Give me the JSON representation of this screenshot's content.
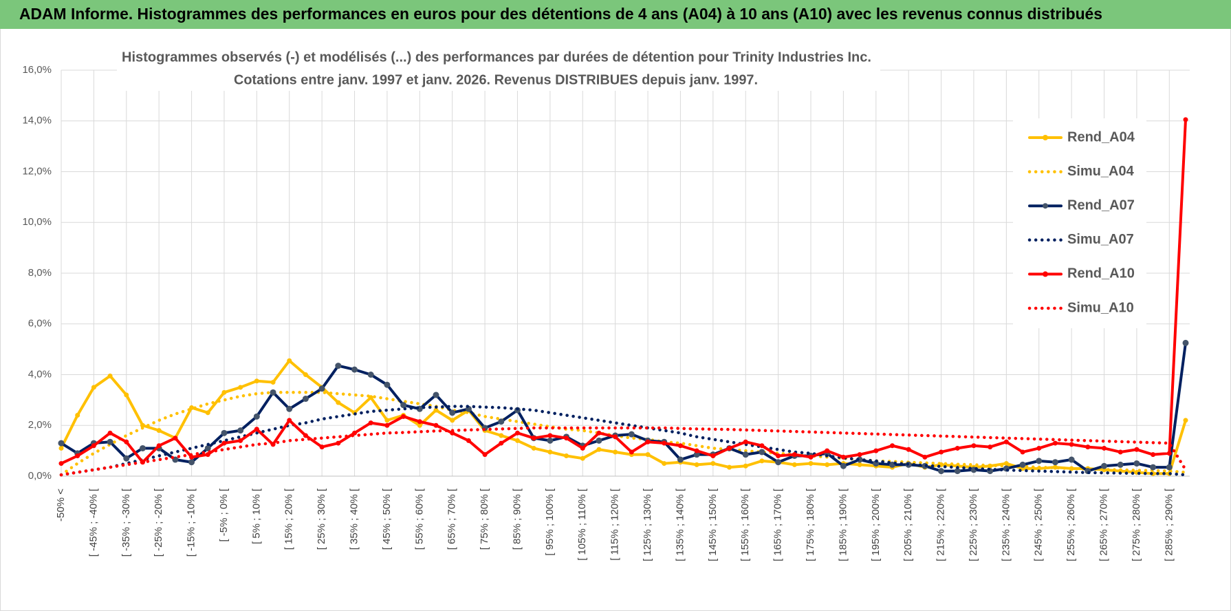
{
  "header": {
    "title": "ADAM Informe. Histogrammes des performances en euros pour des détentions de 4 ans (A04) à 10 ans (A10) avec les revenus connus distribués"
  },
  "chart_data": {
    "type": "line",
    "title": "Histogrammes observés (-) et modélisés (...) des performances par durées de détention pour Trinity Industries Inc.",
    "subtitle": "Cotations entre janv. 1997 et janv. 2026. Revenus DISTRIBUES depuis janv. 1997.",
    "categories": [
      "-50% <",
      null,
      "[ -45% ; -40% [",
      null,
      "[ -35% ; -30% [",
      null,
      "[ -25% ; -20% [",
      null,
      "[ -15% ; -10% [",
      null,
      "[ -5% ; 0% [",
      null,
      "[ 5% ; 10% [",
      null,
      "[ 15% ; 20% [",
      null,
      "[ 25% ; 30% [",
      null,
      "[ 35% ; 40% [",
      null,
      "[ 45% ; 50% [",
      null,
      "[ 55% ; 60% [",
      null,
      "[ 65% ; 70% [",
      null,
      "[ 75% ; 80% [",
      null,
      "[ 85% ; 90% [",
      null,
      "[ 95% ; 100% [",
      null,
      "[ 105% ; 110% [",
      null,
      "[ 115% ; 120% [",
      null,
      "[ 125% ; 130% [",
      null,
      "[ 135% ; 140% [",
      null,
      "[ 145% ; 150% [",
      null,
      "[ 155% ; 160% [",
      null,
      "[ 165% ; 170% [",
      null,
      "[ 175% ; 180% [",
      null,
      "[ 185% ; 190% [",
      null,
      "[ 195% ; 200% [",
      null,
      "[ 205% ; 210% [",
      null,
      "[ 215% ; 220% [",
      null,
      "[ 225% ; 230% [",
      null,
      "[ 235% ; 240% [",
      null,
      "[ 245% ; 250% [",
      null,
      "[ 255% ; 260% [",
      null,
      "[ 265% ; 270% [",
      null,
      "[ 275% ; 280% [",
      null,
      "[ 285% ; 290% [",
      null
    ],
    "ylim": [
      0,
      16
    ],
    "yticks": [
      {
        "value": 0,
        "label": "0,0%"
      },
      {
        "value": 2,
        "label": "2,0%"
      },
      {
        "value": 4,
        "label": "4,0%"
      },
      {
        "value": 6,
        "label": "6,0%"
      },
      {
        "value": 8,
        "label": "8,0%"
      },
      {
        "value": 10,
        "label": "10,0%"
      },
      {
        "value": 12,
        "label": "12,0%"
      },
      {
        "value": 14,
        "label": "14,0%"
      },
      {
        "value": 16,
        "label": "16,0%"
      }
    ],
    "grid": true,
    "legend": "right",
    "series": [
      {
        "name": "Rend_A04",
        "color": "#FFC000",
        "marker_color": "#FFC000",
        "style": "solid",
        "marker": true,
        "values": [
          1.1,
          2.4,
          3.5,
          3.95,
          3.2,
          2.0,
          1.8,
          1.5,
          2.7,
          2.5,
          3.3,
          3.5,
          3.75,
          3.7,
          4.55,
          4.0,
          3.5,
          2.9,
          2.5,
          3.1,
          2.2,
          2.4,
          2.0,
          2.6,
          2.2,
          2.6,
          1.8,
          1.6,
          1.4,
          1.1,
          0.95,
          0.8,
          0.7,
          1.05,
          0.95,
          0.85,
          0.85,
          0.5,
          0.55,
          0.45,
          0.5,
          0.35,
          0.4,
          0.6,
          0.55,
          0.45,
          0.5,
          0.45,
          0.5,
          0.45,
          0.4,
          0.35,
          0.5,
          0.35,
          0.45,
          0.4,
          0.35,
          0.4,
          0.5,
          0.3,
          0.3,
          0.35,
          0.3,
          0.3,
          0.25,
          0.2,
          0.15,
          0.1,
          0.1,
          2.2
        ]
      },
      {
        "name": "Simu_A04",
        "color": "#FFC000",
        "style": "dotted",
        "marker": false,
        "values": [
          0.05,
          0.5,
          0.9,
          1.25,
          1.6,
          1.9,
          2.2,
          2.45,
          2.65,
          2.85,
          3.0,
          3.15,
          3.25,
          3.3,
          3.3,
          3.3,
          3.3,
          3.25,
          3.2,
          3.15,
          3.05,
          2.95,
          2.85,
          2.75,
          2.6,
          2.5,
          2.35,
          2.25,
          2.15,
          2.05,
          1.95,
          1.85,
          1.8,
          1.7,
          1.6,
          1.5,
          1.45,
          1.35,
          1.3,
          1.2,
          1.1,
          1.05,
          1.0,
          0.95,
          0.9,
          0.85,
          0.8,
          0.75,
          0.7,
          0.65,
          0.6,
          0.58,
          0.55,
          0.52,
          0.5,
          0.47,
          0.45,
          0.42,
          0.4,
          0.38,
          0.35,
          0.33,
          0.3,
          0.28,
          0.26,
          0.25,
          0.23,
          0.22,
          0.2,
          0.15
        ]
      },
      {
        "name": "Rend_A07",
        "color": "#002060",
        "marker_color": "#44546A",
        "style": "solid",
        "marker": true,
        "values": [
          1.3,
          0.9,
          1.3,
          1.35,
          0.7,
          1.1,
          1.1,
          0.65,
          0.55,
          1.1,
          1.7,
          1.8,
          2.35,
          3.3,
          2.65,
          3.05,
          3.45,
          4.35,
          4.2,
          4.0,
          3.6,
          2.8,
          2.65,
          3.2,
          2.5,
          2.65,
          1.9,
          2.15,
          2.6,
          1.5,
          1.4,
          1.55,
          1.2,
          1.4,
          1.6,
          1.65,
          1.4,
          1.35,
          0.65,
          0.85,
          0.85,
          1.1,
          0.85,
          0.95,
          0.55,
          0.8,
          0.8,
          0.9,
          0.4,
          0.65,
          0.5,
          0.45,
          0.45,
          0.4,
          0.2,
          0.2,
          0.25,
          0.2,
          0.3,
          0.45,
          0.6,
          0.55,
          0.65,
          0.2,
          0.4,
          0.45,
          0.5,
          0.35,
          0.35,
          5.25
        ]
      },
      {
        "name": "Simu_A07",
        "color": "#002060",
        "style": "dotted",
        "marker": false,
        "values": [
          0.05,
          0.15,
          0.25,
          0.35,
          0.5,
          0.65,
          0.8,
          0.95,
          1.1,
          1.25,
          1.4,
          1.55,
          1.7,
          1.85,
          2.0,
          2.1,
          2.25,
          2.35,
          2.45,
          2.55,
          2.6,
          2.65,
          2.7,
          2.72,
          2.75,
          2.75,
          2.72,
          2.7,
          2.65,
          2.6,
          2.5,
          2.4,
          2.3,
          2.2,
          2.1,
          2.0,
          1.9,
          1.8,
          1.7,
          1.55,
          1.45,
          1.35,
          1.25,
          1.15,
          1.05,
          0.95,
          0.9,
          0.8,
          0.72,
          0.65,
          0.6,
          0.52,
          0.47,
          0.42,
          0.38,
          0.34,
          0.3,
          0.27,
          0.24,
          0.22,
          0.2,
          0.18,
          0.16,
          0.14,
          0.13,
          0.12,
          0.11,
          0.1,
          0.1,
          0.05
        ]
      },
      {
        "name": "Rend_A10",
        "color": "#FF0000",
        "marker_color": "#FF0000",
        "style": "solid",
        "marker": true,
        "values": [
          0.5,
          0.8,
          1.2,
          1.7,
          1.35,
          0.55,
          1.2,
          1.5,
          0.75,
          0.85,
          1.3,
          1.4,
          1.85,
          1.25,
          2.2,
          1.6,
          1.15,
          1.3,
          1.7,
          2.1,
          2.0,
          2.35,
          2.15,
          2.0,
          1.7,
          1.4,
          0.85,
          1.3,
          1.7,
          1.5,
          1.6,
          1.5,
          1.1,
          1.7,
          1.55,
          0.95,
          1.35,
          1.3,
          1.2,
          1.0,
          0.8,
          1.1,
          1.35,
          1.2,
          0.8,
          0.85,
          0.75,
          1.0,
          0.75,
          0.85,
          1.0,
          1.2,
          1.05,
          0.75,
          0.95,
          1.1,
          1.2,
          1.15,
          1.35,
          0.95,
          1.1,
          1.3,
          1.25,
          1.15,
          1.1,
          0.95,
          1.05,
          0.85,
          0.9,
          14.05
        ]
      },
      {
        "name": "Simu_A10",
        "color": "#FF0000",
        "style": "dotted",
        "marker": false,
        "values": [
          0.05,
          0.15,
          0.25,
          0.35,
          0.45,
          0.55,
          0.65,
          0.75,
          0.85,
          0.95,
          1.05,
          1.15,
          1.25,
          1.3,
          1.4,
          1.45,
          1.5,
          1.55,
          1.6,
          1.65,
          1.7,
          1.72,
          1.75,
          1.78,
          1.8,
          1.82,
          1.84,
          1.86,
          1.88,
          1.9,
          1.9,
          1.9,
          1.9,
          1.9,
          1.9,
          1.9,
          1.9,
          1.9,
          1.88,
          1.86,
          1.85,
          1.84,
          1.82,
          1.8,
          1.78,
          1.76,
          1.74,
          1.72,
          1.7,
          1.68,
          1.66,
          1.64,
          1.62,
          1.6,
          1.58,
          1.56,
          1.54,
          1.52,
          1.5,
          1.48,
          1.46,
          1.44,
          1.42,
          1.4,
          1.38,
          1.36,
          1.34,
          1.32,
          1.3,
          0.25
        ]
      }
    ]
  }
}
